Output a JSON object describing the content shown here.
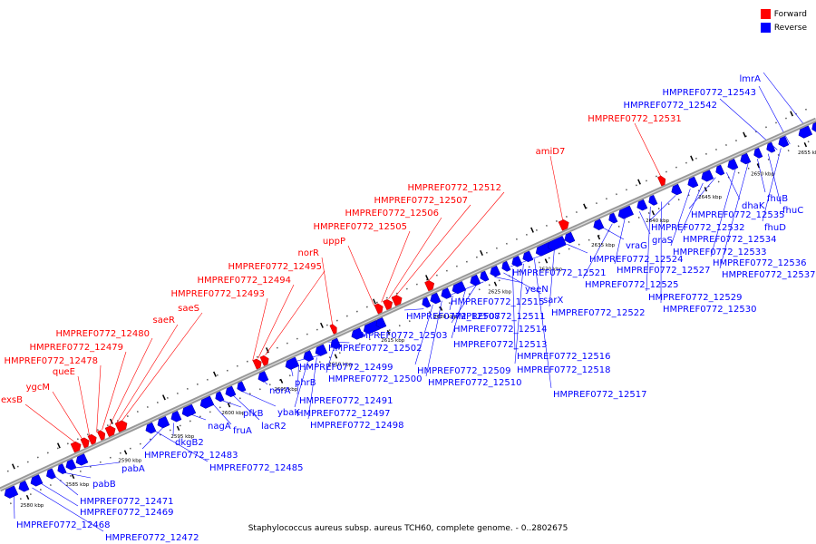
{
  "colors": {
    "forward": "#ff0000",
    "reverse": "#0000ff",
    "backbone": "#999999"
  },
  "legend": [
    {
      "label": "Forward",
      "color": "#ff0000"
    },
    {
      "label": "Reverse",
      "color": "#0000ff"
    }
  ],
  "caption": "Staphylococcus aureus subsp. aureus TCH60, complete genome. - 0..2802675",
  "ticks": [
    "2580 kbp",
    "2585 kbp",
    "2590 kbp",
    "2595 kbp",
    "2600 kbp",
    "2605 kbp",
    "2610 kbp",
    "2615 kbp",
    "2620 kbp",
    "2625 kbp",
    "2630 kbp",
    "2635 kbp",
    "2640 kbp",
    "2645 kbp",
    "2650 kbp",
    "2655 kbp"
  ],
  "forward_labels": [
    "exsB",
    "ygcM",
    "queE",
    "HMPREF0772_12478",
    "HMPREF0772_12479",
    "HMPREF0772_12480",
    "saeR",
    "saeS",
    "HMPREF0772_12493",
    "HMPREF0772_12494",
    "HMPREF0772_12495",
    "norR",
    "uppP",
    "HMPREF0772_12505",
    "HMPREF0772_12506",
    "HMPREF0772_12507",
    "HMPREF0772_12512",
    "amiD7",
    "HMPREF0772_12531"
  ],
  "reverse_labels": [
    "lmrA",
    "HMPREF0772_12543",
    "HMPREF0772_12542",
    "HMPREF0772_12472",
    "HMPREF0772_12468",
    "HMPREF0772_12469",
    "HMPREF0772_12471",
    "pabB",
    "pabA",
    "HMPREF0772_12485",
    "HMPREF0772_12483",
    "dkgB2",
    "nagA",
    "fruA",
    "pfkB",
    "lacR2",
    "ybaK",
    "norA",
    "phrB",
    "HMPREF0772_12491",
    "HMPREF0772_12497",
    "HMPREF0772_12498",
    "HMPREF0772_12499",
    "HMPREF0772_12500",
    "HMPREF0772_12502",
    "HMPREF0772_12503",
    "HMPREF0772_12508",
    "HMPREF0772_12509",
    "HMPREF0772_12510",
    "HMPREF0772_12511",
    "HMPREF0772_12513",
    "HMPREF0772_12514",
    "HMPREF0772_12515",
    "yeeN",
    "sarX",
    "HMPREF0772_12516",
    "HMPREF0772_12518",
    "HMPREF0772_12517",
    "HMPREF0772_12521",
    "HMPREF0772_12522",
    "HMPREF0772_12524",
    "vraG",
    "HMPREF0772_12525",
    "HMPREF0772_12527",
    "graS",
    "HMPREF0772_12529",
    "HMPREF0772_12530",
    "HMPREF0772_12532",
    "HMPREF0772_12533",
    "HMPREF0772_12534",
    "HMPREF0772_12535",
    "dhaK",
    "HMPREF0772_12536",
    "HMPREF0772_12537",
    "fhuB",
    "fhuC",
    "fhuD"
  ]
}
